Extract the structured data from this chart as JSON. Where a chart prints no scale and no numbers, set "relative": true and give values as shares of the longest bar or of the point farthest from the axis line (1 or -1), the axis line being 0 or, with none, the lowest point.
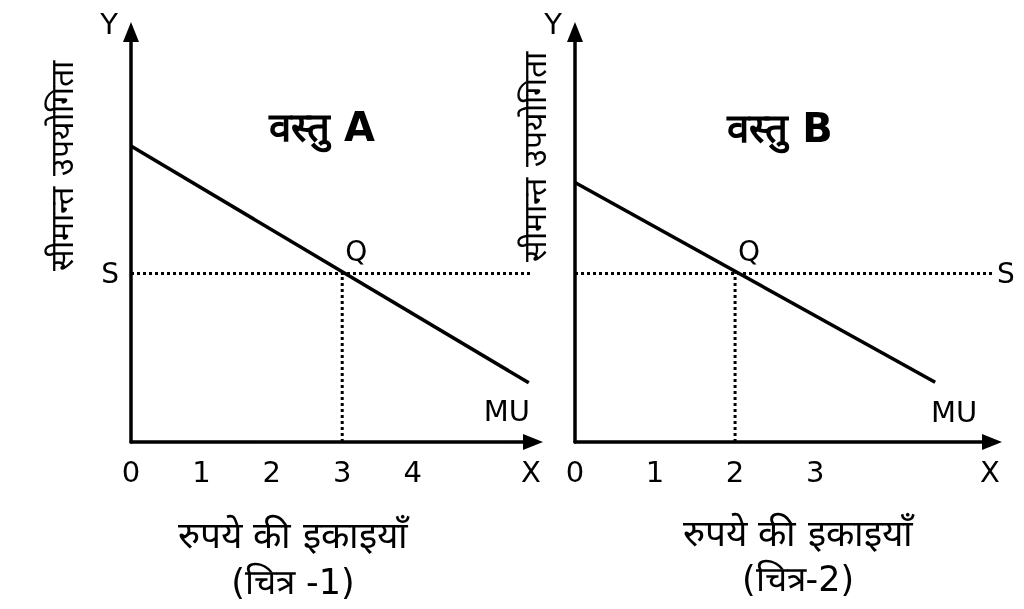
{
  "chart_data": [
    {
      "type": "line",
      "title": "वस्तु A",
      "xlabel": "रुपये की इकाइयाँ",
      "ylabel": "सीमान्त उपयोगिता",
      "relative": true,
      "xlim": [
        0,
        5.71
      ],
      "xticks": [
        0,
        1,
        2,
        3,
        4
      ],
      "tick_labels": "x",
      "marker": "none",
      "line_style": "solid",
      "series": [
        {
          "name": "MU",
          "color": "#000000",
          "x": [
            0,
            5.65
          ],
          "values": [
            1,
            0.2
          ]
        },
        {
          "color": "#000000",
          "x": [
            3,
            3
          ],
          "values": [
            0,
            0.57
          ],
          "line_style": "dotted"
        }
      ],
      "ref_lines": [
        {
          "axis": "y",
          "value": 0.57,
          "label": "S",
          "color": "#000000",
          "line_style": "dotted"
        }
      ],
      "annotations": [
        "Y",
        "X",
        {
          "text": "Q",
          "x": 3,
          "y": 0.57
        },
        "(चित्र -1)"
      ]
    },
    {
      "type": "line",
      "title": "वस्तु B",
      "xlabel": "रुपये की इकाइयाँ",
      "ylabel": "सीमान्त उपयोगिता",
      "relative": true,
      "xlim": [
        0,
        5.21
      ],
      "xticks": [
        0,
        1,
        2,
        3
      ],
      "tick_labels": "x",
      "marker": "none",
      "line_style": "solid",
      "series": [
        {
          "name": "MU",
          "color": "#000000",
          "x": [
            0,
            4.5
          ],
          "values": [
            1,
            0.23
          ]
        },
        {
          "color": "#000000",
          "x": [
            2,
            2
          ],
          "values": [
            0,
            0.65
          ],
          "line_style": "dotted"
        }
      ],
      "ref_lines": [
        {
          "axis": "y",
          "value": 0.65,
          "label": "S",
          "color": "#000000",
          "line_style": "dotted"
        }
      ],
      "annotations": [
        "Y",
        "X",
        {
          "text": "Q",
          "x": 2,
          "y": 0.65
        },
        "(चित्र-2)"
      ]
    }
  ]
}
